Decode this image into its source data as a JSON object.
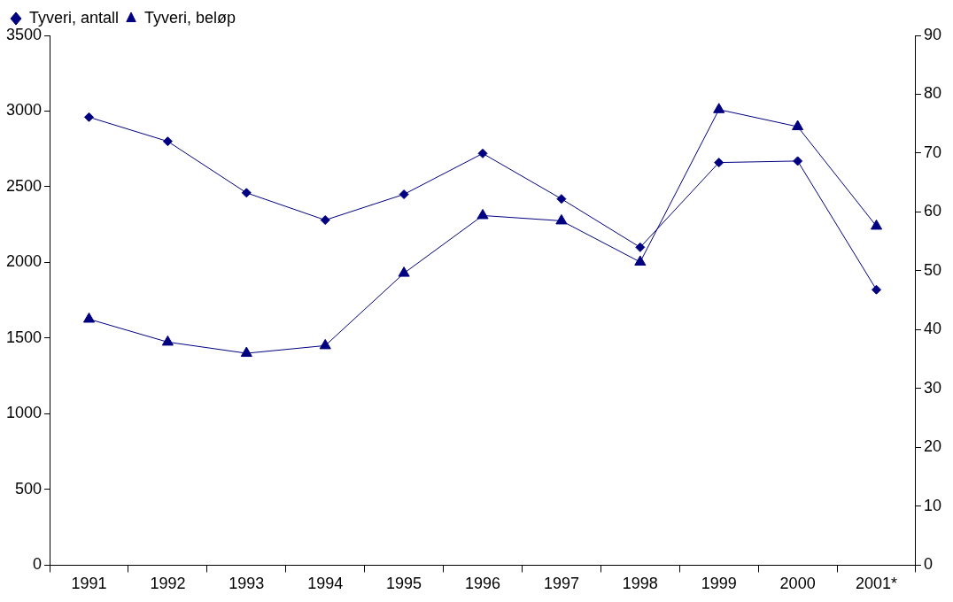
{
  "chart_data": {
    "type": "line",
    "categories": [
      "1991",
      "1992",
      "1993",
      "1994",
      "1995",
      "1996",
      "1997",
      "1998",
      "1999",
      "2000",
      "2001*"
    ],
    "series": [
      {
        "name": "Tyveri, antall",
        "color": "#000080",
        "marker": "diamond",
        "values": [
          2960,
          2800,
          2460,
          2280,
          2450,
          2720,
          2420,
          2100,
          2660,
          2670,
          1820
        ]
      },
      {
        "name": "Tyveri, beløp",
        "color": "#000080",
        "marker": "triangle",
        "axis": "y2",
        "values": [
          41.8,
          37.9,
          36.0,
          37.3,
          49.6,
          59.4,
          58.5,
          51.5,
          77.4,
          74.5,
          57.6
        ]
      }
    ],
    "ylim": [
      0,
      3500
    ],
    "yticks": [
      0,
      500,
      1000,
      1500,
      2000,
      2500,
      3000,
      3500
    ],
    "y2lim": [
      0,
      90
    ],
    "y2ticks": [
      0,
      10,
      20,
      30,
      40,
      50,
      60,
      70,
      80,
      90
    ],
    "grid": false,
    "legend": "top left",
    "line_style": "solid"
  }
}
